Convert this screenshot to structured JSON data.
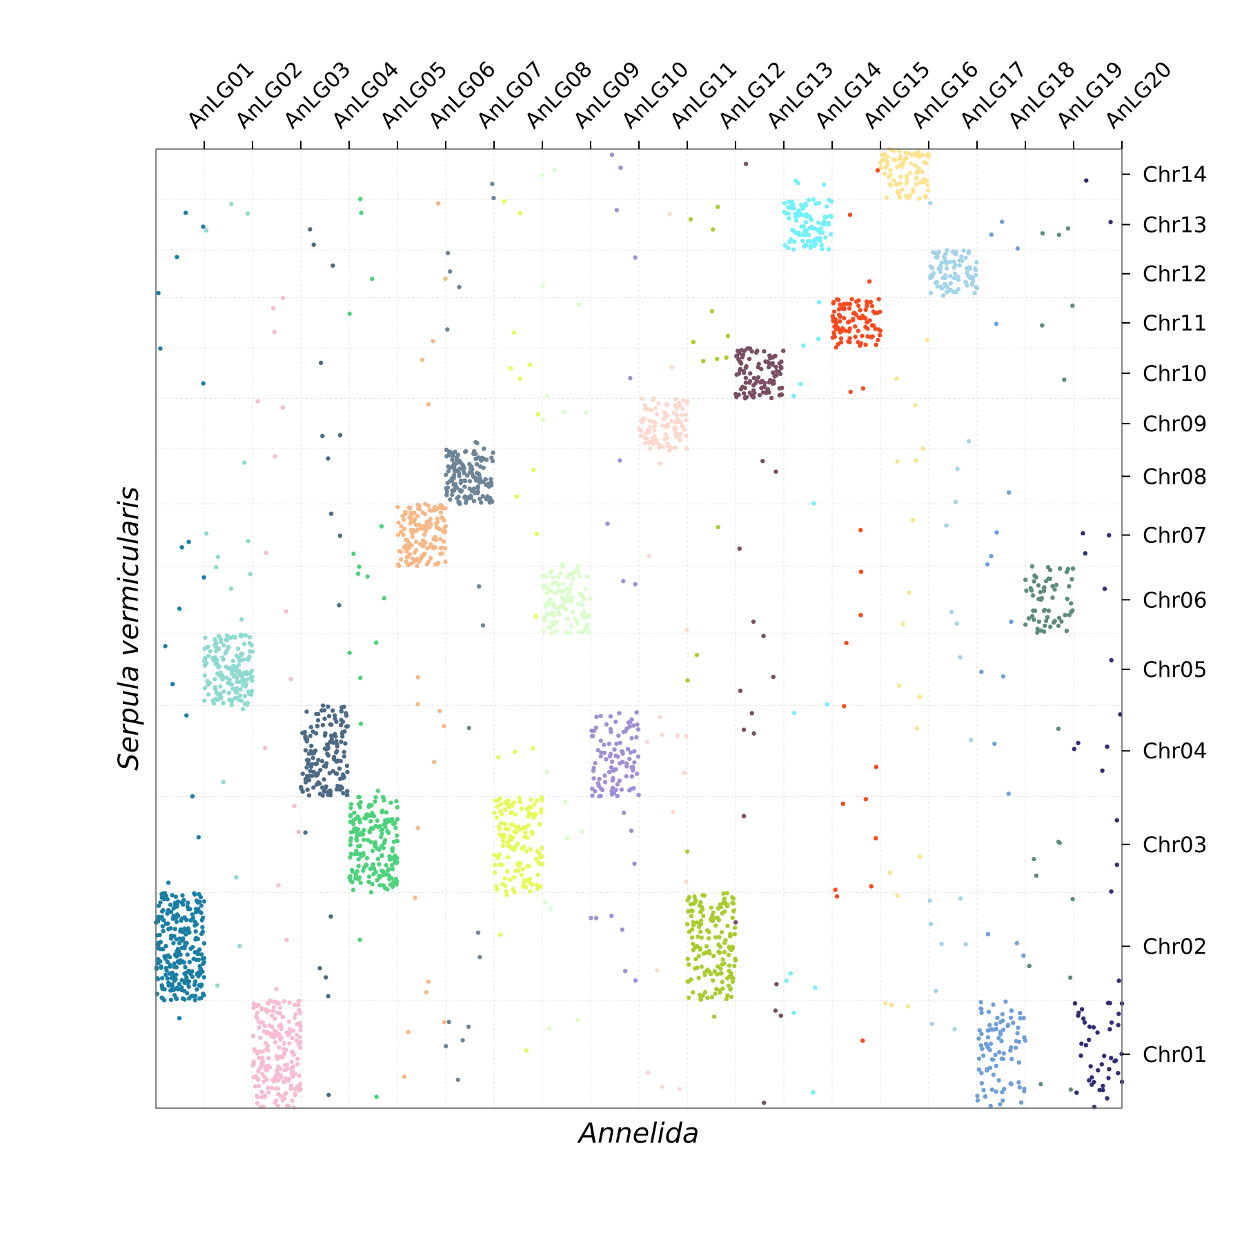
{
  "chart_data": {
    "type": "scatter",
    "title": "",
    "xlabel": "Annelida",
    "ylabel": "Serpula vermicularis",
    "x_axis_position": "top",
    "y_axis_position": "right",
    "grid": true,
    "legend": "none",
    "x_categories": [
      "AnLG01",
      "AnLG02",
      "AnLG03",
      "AnLG04",
      "AnLG05",
      "AnLG06",
      "AnLG07",
      "AnLG08",
      "AnLG09",
      "AnLG10",
      "AnLG11",
      "AnLG12",
      "AnLG13",
      "AnLG14",
      "AnLG15",
      "AnLG16",
      "AnLG17",
      "AnLG18",
      "AnLG19",
      "AnLG20"
    ],
    "x_bounds": [
      0,
      1.0,
      2.0,
      3.0,
      4.0,
      5.0,
      6.0,
      7.0,
      8.0,
      9.0,
      10.0,
      11.0,
      12.0,
      13.0,
      14.0,
      15.0,
      16.0,
      17.0,
      18.0,
      19.0,
      20.0
    ],
    "y_categories": [
      "Chr01",
      "Chr02",
      "Chr03",
      "Chr04",
      "Chr05",
      "Chr06",
      "Chr07",
      "Chr08",
      "Chr09",
      "Chr10",
      "Chr11",
      "Chr12",
      "Chr13",
      "Chr14"
    ],
    "y_bounds": [
      0,
      2.25,
      4.5,
      6.5,
      8.4,
      9.9,
      11.3,
      12.6,
      13.75,
      14.8,
      15.85,
      16.9,
      17.9,
      18.95,
      20.0
    ],
    "colors": [
      "#1b7fa5",
      "#8edad0",
      "#f7bcd4",
      "#4d6a85",
      "#4cd27a",
      "#f6b887",
      "#6e8597",
      "#e5fa58",
      "#dafdcb",
      "#a18fd5",
      "#fcd8cf",
      "#a9cc2e",
      "#7a4e62",
      "#72f0fb",
      "#f9491f",
      "#fde38f",
      "#a3d4e9",
      "#6f9fd8",
      "#5e8b7e",
      "#2f2d74"
    ],
    "blocks": [
      {
        "x": "AnLG01",
        "y": "Chr02",
        "n": 260
      },
      {
        "x": "AnLG02",
        "y": "Chr05",
        "n": 170
      },
      {
        "x": "AnLG03",
        "y": "Chr01",
        "n": 210
      },
      {
        "x": "AnLG04",
        "y": "Chr04",
        "n": 150
      },
      {
        "x": "AnLG05",
        "y": "Chr03",
        "n": 190
      },
      {
        "x": "AnLG06",
        "y": "Chr07",
        "n": 150
      },
      {
        "x": "AnLG07",
        "y": "Chr08",
        "n": 150
      },
      {
        "x": "AnLG08",
        "y": "Chr03",
        "n": 140
      },
      {
        "x": "AnLG09",
        "y": "Chr06",
        "n": 110
      },
      {
        "x": "AnLG10",
        "y": "Chr04",
        "n": 100
      },
      {
        "x": "AnLG11",
        "y": "Chr09",
        "n": 100
      },
      {
        "x": "AnLG12",
        "y": "Chr02",
        "n": 160
      },
      {
        "x": "AnLG13",
        "y": "Chr10",
        "n": 100
      },
      {
        "x": "AnLG14",
        "y": "Chr13",
        "n": 100
      },
      {
        "x": "AnLG15",
        "y": "Chr11",
        "n": 100
      },
      {
        "x": "AnLG16",
        "y": "Chr14",
        "n": 90
      },
      {
        "x": "AnLG17",
        "y": "Chr12",
        "n": 90
      },
      {
        "x": "AnLG18",
        "y": "Chr01",
        "n": 90
      },
      {
        "x": "AnLG19",
        "y": "Chr06",
        "n": 60
      },
      {
        "x": "AnLG20",
        "y": "Chr01",
        "n": 40
      }
    ],
    "scatter_per_column": 18,
    "xlim": [
      0,
      20
    ],
    "ylim": [
      0,
      20
    ]
  }
}
